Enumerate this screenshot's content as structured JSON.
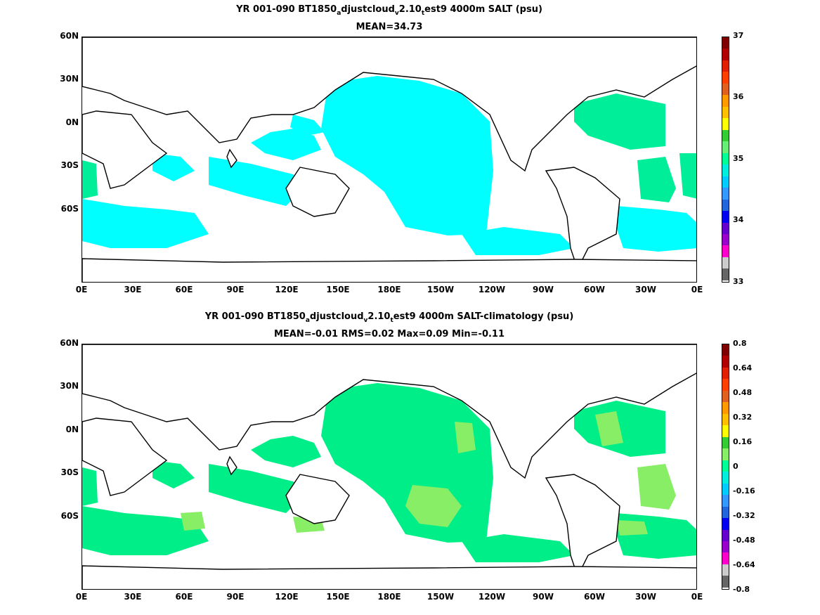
{
  "top_panel": {
    "title_line1": {
      "pre": "YR 001-090 BT1850",
      "sub1": "a",
      "mid1": "djustcloud",
      "sub2": "v",
      "mid2": "2.10",
      "sub3": "t",
      "post": "est9 4000m SALT (psu)"
    },
    "title_line2": "MEAN=34.73",
    "lat_labels": [
      "60N",
      "30N",
      "0N",
      "30S",
      "60S"
    ],
    "lon_labels": [
      "0E",
      "30E",
      "60E",
      "90E",
      "120E",
      "150E",
      "180E",
      "150W",
      "120W",
      "90W",
      "60W",
      "30W",
      "0E"
    ],
    "colorbar_labels": [
      "37",
      "36",
      "35",
      "34",
      "33"
    ],
    "colorbar_colors": [
      "#800000",
      "#b00000",
      "#e02000",
      "#ff4000",
      "#e06020",
      "#ff9900",
      "#ffc000",
      "#ffff00",
      "#33cc33",
      "#66ee77",
      "#00ff99",
      "#00eedd",
      "#00ccff",
      "#3399ff",
      "#2266dd",
      "#0000ee",
      "#6600cc",
      "#9900cc",
      "#ff00cc",
      "#cccccc",
      "#666666"
    ],
    "fill_colors": {
      "cyan": "#00ffff",
      "green": "#00ee99"
    }
  },
  "bottom_panel": {
    "title_line1": {
      "pre": "YR 001-090 BT1850",
      "sub1": "a",
      "mid1": "djustcloud",
      "sub2": "v",
      "mid2": "2.10",
      "sub3": "t",
      "post": "est9 4000m SALT-climatology (psu)"
    },
    "title_line2": "MEAN=-0.01   RMS=0.02   Max=0.09   Min=-0.11",
    "lat_labels": [
      "60N",
      "30N",
      "0N",
      "30S",
      "60S"
    ],
    "lon_labels": [
      "0E",
      "30E",
      "60E",
      "90E",
      "120E",
      "150E",
      "180E",
      "150W",
      "120W",
      "90W",
      "60W",
      "30W",
      "0E"
    ],
    "colorbar_labels": [
      "0.8",
      "0.64",
      "0.48",
      "0.32",
      "0.16",
      "0",
      "-0.16",
      "-0.32",
      "-0.48",
      "-0.64",
      "-0.8"
    ],
    "colorbar_colors": [
      "#800000",
      "#b00000",
      "#e02000",
      "#ff4000",
      "#e06020",
      "#ff9900",
      "#ffc000",
      "#ffff00",
      "#33cc33",
      "#88ee66",
      "#00ff99",
      "#00eedd",
      "#00ccff",
      "#3399ff",
      "#2266dd",
      "#0000ee",
      "#6600cc",
      "#9900cc",
      "#ff00cc",
      "#cccccc",
      "#666666"
    ],
    "fill_colors": {
      "green": "#00ee88",
      "lightgreen": "#88ee66"
    }
  }
}
